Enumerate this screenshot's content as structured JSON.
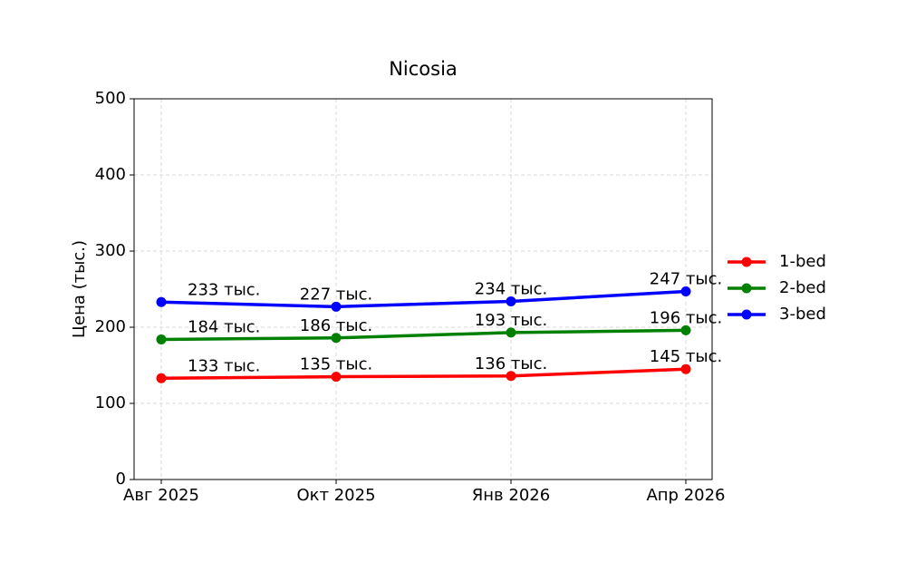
{
  "chart_data": {
    "type": "line",
    "title": "Nicosia",
    "y_label": "Цена (тыс.)",
    "categories": [
      "Авг 2025",
      "Окт 2025",
      "Янв 2026",
      "Апр 2026"
    ],
    "series": [
      {
        "name": "1-bed",
        "color": "#ff0000",
        "values": [
          133,
          135,
          136,
          145
        ],
        "value_labels": [
          "133 тыс.",
          "135 тыс.",
          "136 тыс.",
          "145 тыс."
        ]
      },
      {
        "name": "2-bed",
        "color": "#008000",
        "values": [
          184,
          186,
          193,
          196
        ],
        "value_labels": [
          "184 тыс.",
          "186 тыс.",
          "193 тыс.",
          "196 тыс."
        ]
      },
      {
        "name": "3-bed",
        "color": "#0000ff",
        "values": [
          233,
          227,
          234,
          247
        ],
        "value_labels": [
          "233 тыс.",
          "227 тыс.",
          "234 тыс.",
          "247 тыс."
        ]
      }
    ],
    "ylim": [
      0,
      500
    ],
    "yticks": [
      0,
      100,
      200,
      300,
      400,
      500
    ],
    "grid": true,
    "legend": "right"
  }
}
